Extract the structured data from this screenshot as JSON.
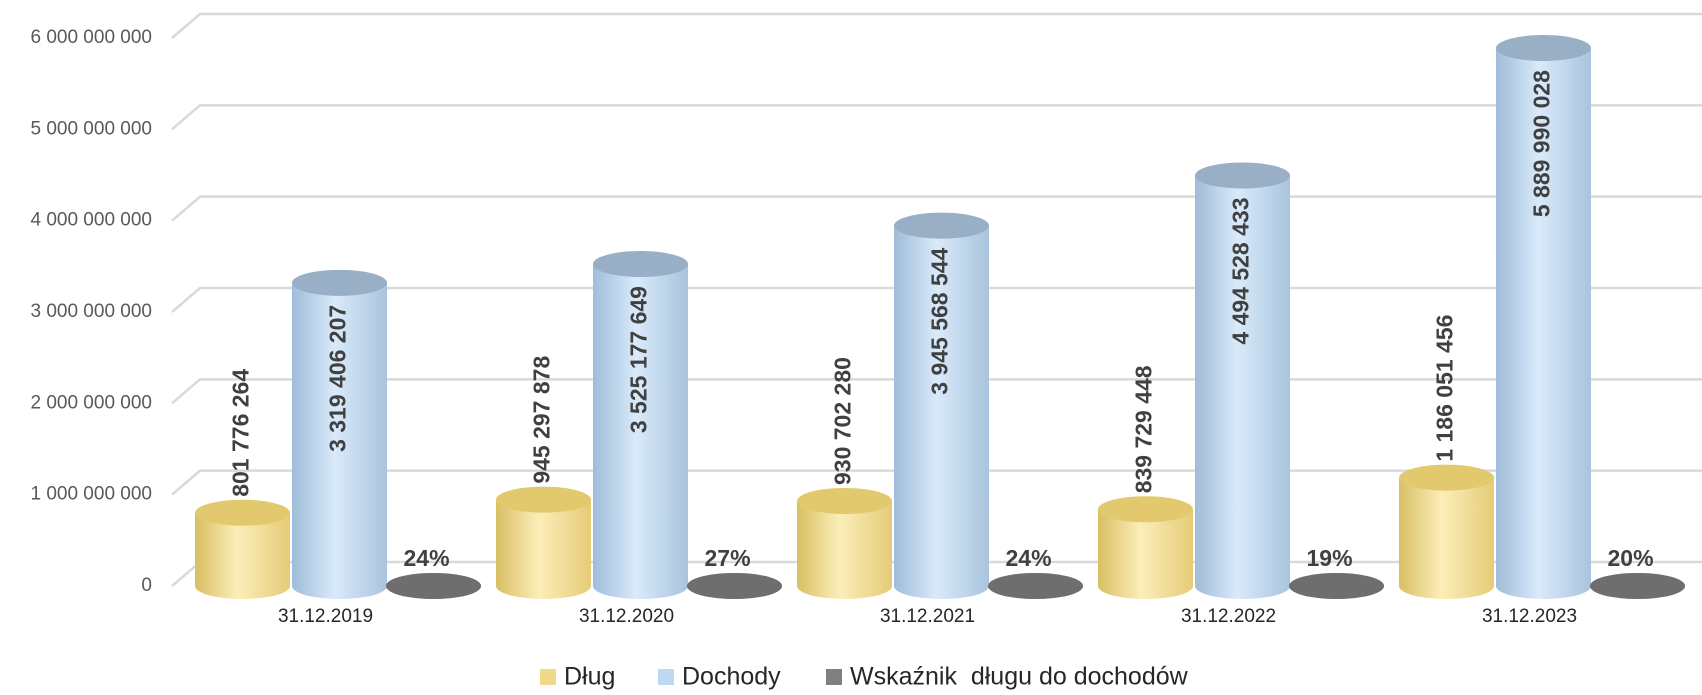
{
  "chart_data": {
    "type": "bar3d",
    "categories": [
      "31.12.2019",
      "31.12.2020",
      "31.12.2021",
      "31.12.2022",
      "31.12.2023"
    ],
    "series": [
      {
        "name": "Dług",
        "color": "#f2d98a",
        "values": [
          801776264,
          945297878,
          930702280,
          839729448,
          1186051456
        ],
        "value_labels": [
          "801 776 264",
          "945 297 878",
          "930 702 280",
          "839 729 448",
          "1 186 051 456"
        ]
      },
      {
        "name": "Dochody",
        "color": "#bcd8f2",
        "values": [
          3319406207,
          3525177649,
          3945568544,
          4494528433,
          5889990028
        ],
        "value_labels": [
          "3 319 406 207",
          "3 525 177 649",
          "3 945 568 544",
          "4 494 528 433",
          "5 889 990 028"
        ]
      },
      {
        "name": "Wskaźnik  długu do dochodów",
        "color": "#808080",
        "values": [
          0.24,
          0.27,
          0.24,
          0.19,
          0.2
        ],
        "value_labels": [
          "24%",
          "27%",
          "24%",
          "19%",
          "20%"
        ]
      }
    ],
    "ylim": [
      0,
      6000000000
    ],
    "yticks": [
      0,
      {
        "value": 1000000000,
        "label": "1 000 000 000"
      },
      {
        "value": 2000000000,
        "label": "2 000 000 000"
      },
      {
        "value": 3000000000,
        "label": "3 000 000 000"
      },
      {
        "value": 4000000000,
        "label": "4 000 000 000"
      },
      {
        "value": 5000000000,
        "label": "5 000 000 000"
      },
      {
        "value": 6000000000,
        "label": "6 000 000 000"
      }
    ],
    "grid": true,
    "legend": "bottom"
  }
}
